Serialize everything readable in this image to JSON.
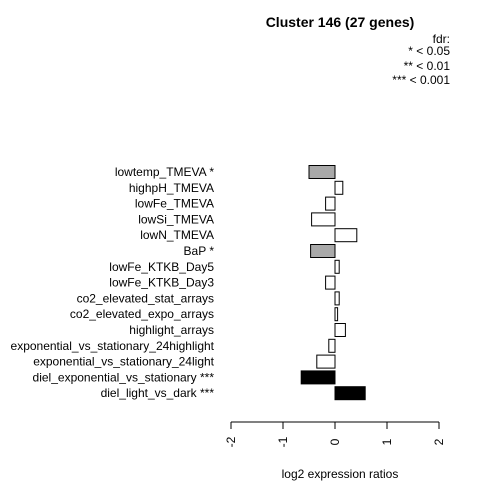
{
  "chart_data": {
    "type": "bar",
    "orientation": "horizontal",
    "title": "Cluster 146 (27 genes)",
    "xlabel": "log2 expression ratios",
    "ylabel": "",
    "xlim": [
      -2,
      2
    ],
    "xticks": [
      "-2",
      "-1",
      "0",
      "1",
      "2"
    ],
    "legend": {
      "title": "fdr:",
      "entries": [
        "* < 0.05",
        "** < 0.01",
        "*** < 0.001"
      ],
      "placement": "top-right"
    },
    "categories": [
      "lowtemp_TMEVA *",
      "highpH_TMEVA",
      "lowFe_TMEVA",
      "lowSi_TMEVA",
      "lowN_TMEVA",
      "BaP *",
      "lowFe_KTKB_Day5",
      "lowFe_KTKB_Day3",
      "co2_elevated_stat_arrays",
      "co2_elevated_expo_arrays",
      "highlight_arrays",
      "exponential_vs_stationary_24highlight",
      "exponential_vs_stationary_24light",
      "diel_exponential_vs_stationary ***",
      "diel_light_vs_dark ***"
    ],
    "values": [
      -0.5,
      0.15,
      -0.18,
      -0.45,
      0.42,
      -0.47,
      0.08,
      -0.18,
      0.08,
      0.05,
      0.2,
      -0.12,
      -0.35,
      -0.65,
      0.58
    ],
    "fill_colors": [
      "#a9a9a9",
      "#ffffff",
      "#ffffff",
      "#ffffff",
      "#ffffff",
      "#a9a9a9",
      "#ffffff",
      "#ffffff",
      "#ffffff",
      "#ffffff",
      "#ffffff",
      "#ffffff",
      "#ffffff",
      "#000000",
      "#000000"
    ],
    "grid": false
  }
}
